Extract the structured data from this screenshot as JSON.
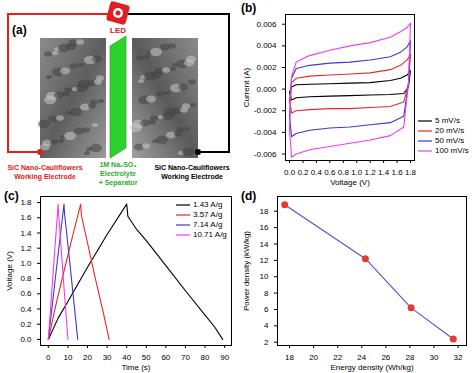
{
  "diagram": {
    "title": "(a)",
    "led": "LED",
    "left_electrode": [
      "SiC Nano-Cauliflowers",
      "Working Electrode"
    ],
    "separator": [
      "1M Na₂SO₄",
      "Electrolyte",
      "+ Separator"
    ],
    "right_electrode": [
      "SiC Nano-Cauliflowers",
      "Working Electrode"
    ]
  },
  "chart_data": [
    {
      "type": "line",
      "title": "(b)",
      "x_label": "Voltage (V)",
      "y_label": "Current (A)",
      "xlim": [
        -0.06,
        1.86
      ],
      "xticks": [
        {
          "value": 0,
          "label": "0.0"
        },
        0.2,
        0.4,
        0.6,
        0.8,
        {
          "value": 1,
          "label": "1.0"
        },
        1.2,
        1.4,
        1.6,
        1.8
      ],
      "ylim": [
        -0.0066,
        0.0069
      ],
      "yticks": [
        -0.006,
        -0.004,
        -0.002,
        {
          "value": 0,
          "label": "0.000"
        },
        0.002,
        0.004,
        0.006
      ],
      "legend": "lower right",
      "series": [
        {
          "name": "5 mV/s",
          "color": "#000000",
          "x": [
            0,
            0.03,
            0.1,
            0.3,
            0.6,
            0.9,
            1.2,
            1.5,
            1.65,
            1.75,
            1.8,
            1.77,
            1.7,
            1.5,
            1.2,
            0.9,
            0.6,
            0.3,
            0.1,
            0.03,
            0
          ],
          "values": [
            -0.0003,
            0.0002,
            0.0004,
            0.00045,
            0.0005,
            0.00055,
            0.0006,
            0.0008,
            0.001,
            0.0013,
            0.0017,
            0.0002,
            -0.0004,
            -0.0005,
            -0.00055,
            -0.0006,
            -0.00065,
            -0.0007,
            -0.0008,
            -0.001,
            -0.0003
          ]
        },
        {
          "name": "20 mV/s",
          "color": "#e32b2b",
          "x": [
            0,
            0.03,
            0.1,
            0.3,
            0.6,
            0.9,
            1.2,
            1.5,
            1.65,
            1.75,
            1.8,
            1.77,
            1.7,
            1.5,
            1.2,
            0.9,
            0.6,
            0.3,
            0.1,
            0.03,
            0
          ],
          "values": [
            -0.001,
            0.0006,
            0.001,
            0.0012,
            0.0013,
            0.0014,
            0.0015,
            0.0018,
            0.0022,
            0.0027,
            0.0032,
            0.0005,
            -0.0012,
            -0.0016,
            -0.0017,
            -0.0018,
            -0.0018,
            -0.0019,
            -0.002,
            -0.0022,
            -0.001
          ]
        },
        {
          "name": "50 mV/s",
          "color": "#3a3ad0",
          "x": [
            0,
            0.03,
            0.1,
            0.3,
            0.6,
            0.9,
            1.2,
            1.5,
            1.65,
            1.75,
            1.8,
            1.77,
            1.7,
            1.5,
            1.2,
            0.9,
            0.6,
            0.3,
            0.1,
            0.03,
            0
          ],
          "values": [
            -0.0025,
            0.001,
            0.0019,
            0.0022,
            0.0024,
            0.0025,
            0.0027,
            0.003,
            0.0034,
            0.0039,
            0.0045,
            0.0005,
            -0.0025,
            -0.0031,
            -0.0033,
            -0.0035,
            -0.0036,
            -0.0038,
            -0.0041,
            -0.0044,
            -0.0025
          ]
        },
        {
          "name": "100 mV/s",
          "color": "#f03cf0",
          "x": [
            0,
            0.03,
            0.1,
            0.3,
            0.6,
            0.9,
            1.2,
            1.5,
            1.65,
            1.75,
            1.8,
            1.77,
            1.7,
            1.5,
            1.2,
            0.9,
            0.6,
            0.3,
            0.1,
            0.03,
            0
          ],
          "values": [
            -0.0038,
            0.0012,
            0.0025,
            0.0031,
            0.0036,
            0.004,
            0.0043,
            0.0048,
            0.0053,
            0.0057,
            0.0061,
            0.0005,
            -0.0035,
            -0.0043,
            -0.0047,
            -0.005,
            -0.0053,
            -0.0056,
            -0.006,
            -0.0063,
            -0.0038
          ]
        }
      ]
    },
    {
      "type": "line",
      "title": "(c)",
      "x_label": "Time (s)",
      "y_label": "Voltage (V)",
      "xlim": [
        -4,
        93.5
      ],
      "xticks": [
        0,
        10,
        20,
        30,
        40,
        50,
        60,
        70,
        80,
        90
      ],
      "ylim": [
        -0.08,
        1.88
      ],
      "yticks": [
        {
          "value": 0,
          "label": "0.0"
        },
        0.2,
        0.4,
        0.6,
        0.8,
        {
          "value": 1,
          "label": "1.0"
        },
        1.2,
        1.4,
        1.6,
        1.8
      ],
      "legend": "upper right",
      "series": [
        {
          "name": "1.43 A/g",
          "color": "#000000",
          "x": [
            0,
            5,
            10,
            20,
            30,
            40,
            40.6,
            45,
            50,
            60,
            70,
            80,
            85,
            89
          ],
          "values": [
            0,
            0.28,
            0.5,
            0.95,
            1.38,
            1.78,
            1.62,
            1.45,
            1.3,
            0.97,
            0.64,
            0.32,
            0.16,
            0
          ]
        },
        {
          "name": "3.57 A/g",
          "color": "#e32b2b",
          "x": [
            0,
            4,
            8,
            12,
            16.5,
            16.9,
            20,
            24,
            28,
            31
          ],
          "values": [
            0,
            0.47,
            0.9,
            1.32,
            1.78,
            1.63,
            1.27,
            0.8,
            0.36,
            0
          ]
        },
        {
          "name": "7.14 A/g",
          "color": "#3a3ad0",
          "x": [
            0,
            4,
            8,
            8.3,
            11,
            15
          ],
          "values": [
            0,
            0.9,
            1.78,
            1.65,
            1.0,
            0
          ]
        },
        {
          "name": "10.71 A/g",
          "color": "#f03cf0",
          "x": [
            0,
            2.5,
            5,
            5.2,
            7.5,
            10
          ],
          "values": [
            0,
            0.9,
            1.78,
            1.68,
            0.85,
            0
          ]
        }
      ]
    },
    {
      "type": "line",
      "title": "(d)",
      "x_label": "Energy density (Wh/kg)",
      "y_label": "Power density (kW/kg)",
      "xlim": [
        17.0,
        32.7
      ],
      "xticks": [
        18,
        20,
        22,
        24,
        26,
        28,
        30,
        32
      ],
      "ylim": [
        1.6,
        19.8
      ],
      "yticks": [
        2,
        4,
        6,
        8,
        10,
        12,
        14,
        16,
        18
      ],
      "x": [
        17.6,
        24.3,
        28.1,
        31.6
      ],
      "values": [
        18.8,
        12.2,
        6.2,
        2.4
      ],
      "color": "#5050e0",
      "marker": "circle",
      "line_style": "solid",
      "colors": [
        "#e63a2e",
        "#e63a2e",
        "#e63a2e",
        "#e63a2e"
      ]
    }
  ]
}
